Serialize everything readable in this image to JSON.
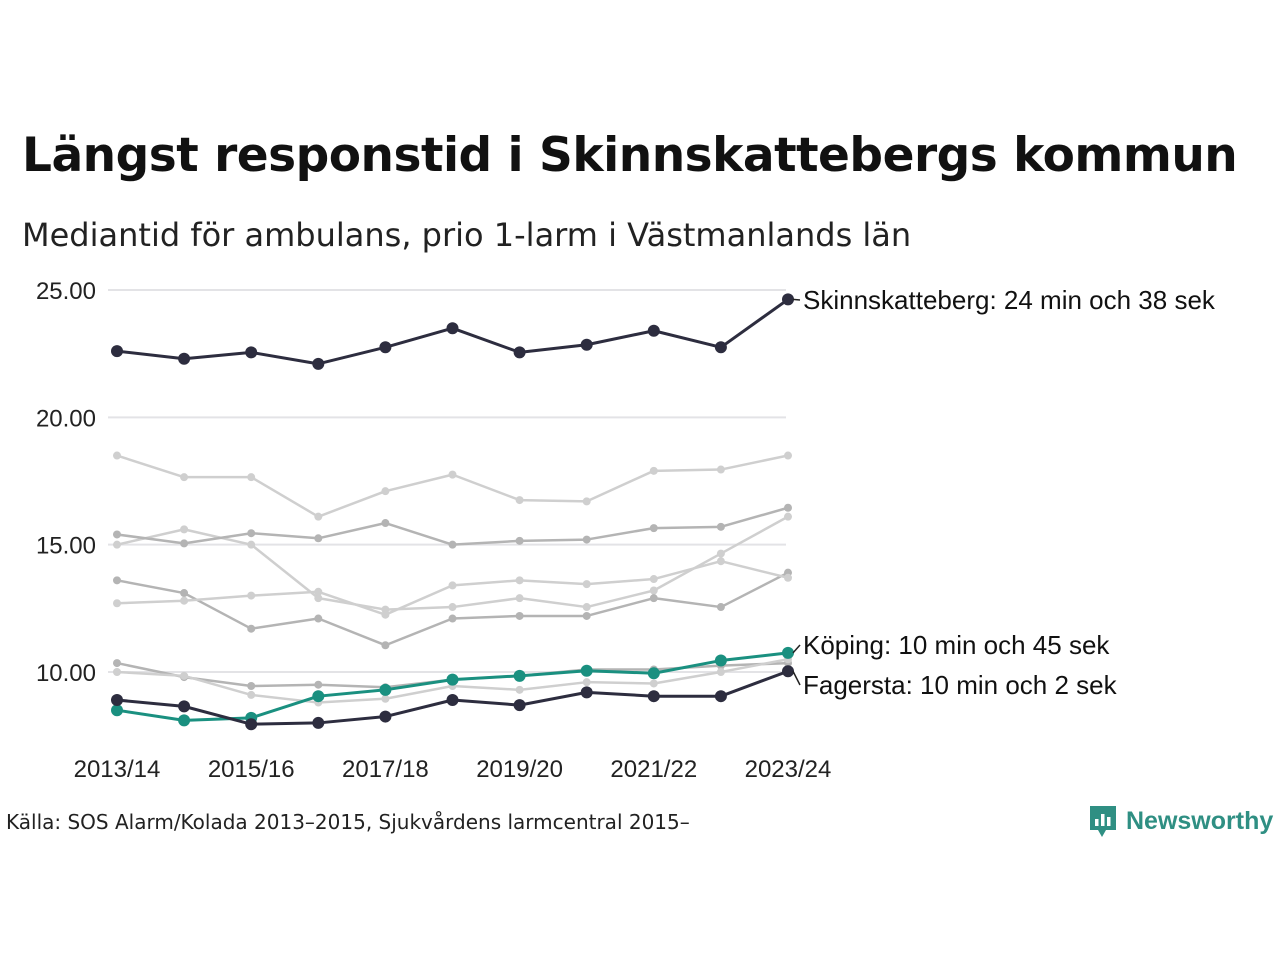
{
  "title": "Längst responstid i Skinnskattebergs kommun",
  "subtitle": "Mediantid för ambulans, prio 1-larm i Västmanlands län",
  "source": "Källa: SOS Alarm/Kolada 2013–2015, Sjukvårdens larmcentral 2015–",
  "logo": {
    "text": "Newsworthy",
    "icon": "newsworthy-chart-bubble-icon",
    "color": "#2f8f83"
  },
  "chart_data": {
    "type": "line",
    "x": [
      "2013/14",
      "2014/15",
      "2015/16",
      "2016/17",
      "2017/18",
      "2018/19",
      "2019/20",
      "2020/21",
      "2021/22",
      "2022/23",
      "2023/24"
    ],
    "x_tick_labels": [
      "2013/14",
      "2015/16",
      "2017/18",
      "2019/20",
      "2021/22",
      "2023/24"
    ],
    "y_tick_labels": [
      "25.00",
      "20.00",
      "15.00",
      "10.00"
    ],
    "y_ticks": [
      25,
      20,
      15,
      10
    ],
    "ylim": [
      7.5,
      25.5
    ],
    "grid": "horizontal",
    "colors": {
      "highlight_dark": "#2d2d3f",
      "highlight_teal": "#1a9080",
      "context_light": "#cfcfcf",
      "context_mid": "#b4b4b4"
    },
    "series": [
      {
        "values": [
          18.5,
          17.65,
          17.65,
          16.1,
          17.1,
          17.75,
          16.75,
          16.7,
          17.9,
          17.95,
          18.5
        ],
        "style": "context_light"
      },
      {
        "values": [
          15.0,
          15.6,
          15.0,
          12.9,
          12.45,
          12.55,
          12.9,
          12.55,
          13.2,
          14.65,
          16.1
        ],
        "style": "context_light"
      },
      {
        "values": [
          15.4,
          15.05,
          15.45,
          15.25,
          15.85,
          15.0,
          15.15,
          15.2,
          15.65,
          15.7,
          16.45
        ],
        "style": "context_mid"
      },
      {
        "values": [
          13.6,
          13.1,
          11.7,
          12.1,
          11.05,
          12.1,
          12.2,
          12.2,
          12.9,
          12.55,
          13.9
        ],
        "style": "context_mid"
      },
      {
        "values": [
          12.7,
          12.8,
          13.0,
          13.15,
          12.25,
          13.4,
          13.6,
          13.45,
          13.65,
          14.35,
          13.7
        ],
        "style": "context_light"
      },
      {
        "values": [
          10.35,
          9.8,
          9.45,
          9.5,
          9.4,
          9.7,
          9.85,
          10.1,
          10.1,
          10.25,
          10.35
        ],
        "style": "context_mid"
      },
      {
        "values": [
          10.0,
          9.85,
          9.1,
          8.8,
          8.95,
          9.45,
          9.3,
          9.6,
          9.55,
          10.0,
          10.5
        ],
        "style": "context_light"
      },
      {
        "name": "Skinnskatteberg",
        "label": "Skinnskatteberg: 24 min och 38 sek",
        "values": [
          22.6,
          22.3,
          22.55,
          22.1,
          22.75,
          23.5,
          22.55,
          22.85,
          23.4,
          22.75,
          24.63
        ],
        "style": "highlight_dark"
      },
      {
        "name": "Köping",
        "label": "Köping: 10 min och 45 sek",
        "values": [
          8.5,
          8.1,
          8.2,
          9.05,
          9.3,
          9.7,
          9.85,
          10.05,
          9.95,
          10.45,
          10.75
        ],
        "style": "highlight_teal"
      },
      {
        "name": "Fagersta",
        "label": "Fagersta: 10 min och 2 sek",
        "values": [
          8.9,
          8.65,
          7.95,
          8.0,
          8.25,
          8.9,
          8.7,
          9.2,
          9.05,
          9.05,
          10.03
        ],
        "style": "highlight_dark"
      }
    ]
  }
}
